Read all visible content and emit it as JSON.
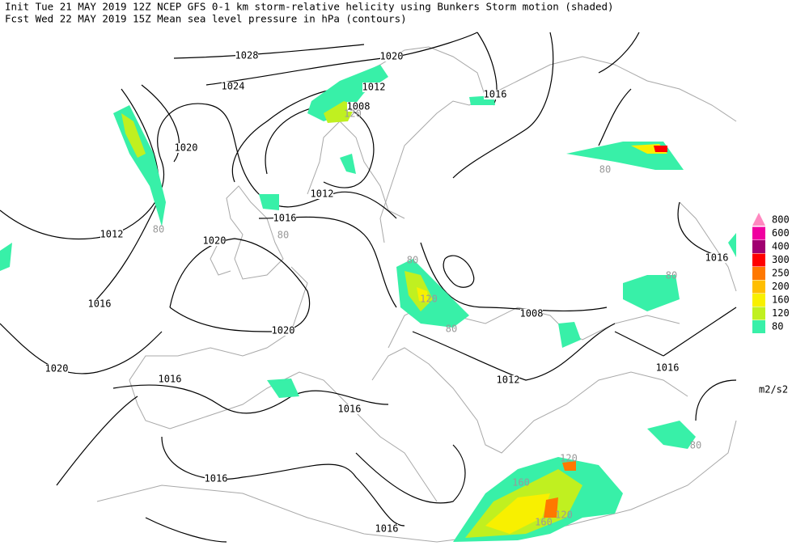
{
  "header": {
    "line1": "Init  Tue 21 MAY 2019 12Z  NCEP GFS 0-1 km storm-relative helicity using Bunkers Storm motion (shaded)",
    "line2": "Fcst Wed 22 MAY 2019 15Z  Mean sea level pressure in hPa (contours)"
  },
  "legend": {
    "levels": [
      800,
      600,
      400,
      300,
      250,
      200,
      160,
      120,
      80
    ],
    "colors": [
      "#ff88c0",
      "#f000a0",
      "#a00070",
      "#ff0000",
      "#ff7800",
      "#ffbe00",
      "#f8f000",
      "#c0f020",
      "#38f0a8"
    ],
    "unit": "m2/s2"
  },
  "contour_labels": [
    1028,
    1024,
    1020,
    1012,
    1016,
    1020,
    1016,
    1012,
    1008,
    1012,
    1020,
    1016,
    1020,
    1020,
    1016,
    1016,
    1016,
    1016,
    1012,
    1008,
    1016,
    1016
  ],
  "shading_labels": [
    120,
    80,
    80,
    80,
    80,
    120,
    80,
    80,
    120,
    160,
    120,
    160,
    80
  ]
}
